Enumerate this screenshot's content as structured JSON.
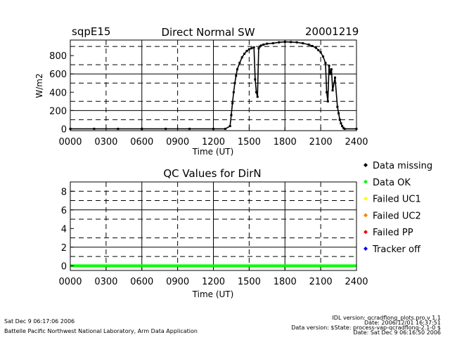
{
  "header": {
    "station": "sqpE15",
    "date": "20001219"
  },
  "footer": {
    "run_time": "Sat Dec  9 06:17:06 2006",
    "affiliation": "Battelle Pacific Northwest National Laboratory, Arm Data Application",
    "idl_version": "IDL version: qcradflong_plots.pro,v 1.1",
    "idl_date": "Date: 2006/12/01 16:37:51",
    "data_version": "Data version: $State: process-vap-qcradflong-2.1-0 $",
    "data_date": "Date: Sat Dec  9 06:16:50 2006"
  },
  "legend": [
    {
      "label": "Data missing",
      "color": "#000000"
    },
    {
      "label": "Data OK",
      "color": "#00ff00"
    },
    {
      "label": "Failed UC1",
      "color": "#ffff00"
    },
    {
      "label": "Failed UC2",
      "color": "#ff8000"
    },
    {
      "label": "Failed PP",
      "color": "#ff0000"
    },
    {
      "label": "Tracker off",
      "color": "#0000ff"
    }
  ],
  "chart_data": [
    {
      "type": "scatter",
      "title": "Direct Normal SW",
      "xlabel": "Time (UT)",
      "ylabel": "W/m2",
      "xlim": [
        0,
        24
      ],
      "ylim": [
        -20,
        970
      ],
      "x_ticks": [
        0,
        3,
        6,
        9,
        12,
        15,
        18,
        21,
        24
      ],
      "x_tick_labels": [
        "0000",
        "0300",
        "0600",
        "0900",
        "1200",
        "1500",
        "1800",
        "2100",
        "2400"
      ],
      "y_ticks": [
        0,
        200,
        400,
        600,
        800
      ],
      "y_tick_labels": [
        "0",
        "200",
        "400",
        "600",
        "800"
      ],
      "grid": "dashed at 0300/0900/1500/2100 and 100/300/500/700/900, solid at 0600/1200/1800 and 200/600",
      "series": [
        {
          "color": "#000000",
          "x": [
            0,
            2,
            4,
            6,
            8,
            10,
            12,
            13,
            13.4,
            13.5,
            13.6,
            13.7,
            13.8,
            13.9,
            14.0,
            14.2,
            14.4,
            14.6,
            14.8,
            15.0,
            15.2,
            15.4,
            15.5,
            15.6,
            15.7,
            15.8,
            15.9,
            16.0,
            16.2,
            16.5,
            17.0,
            17.5,
            18.0,
            18.5,
            19.0,
            19.5,
            20.0,
            20.3,
            20.6,
            20.8,
            21.0,
            21.2,
            21.4,
            21.5,
            21.6,
            21.7,
            21.8,
            21.9,
            22.0,
            22.2,
            22.4,
            22.5,
            22.6,
            22.7,
            22.8,
            22.9,
            23.0,
            24
          ],
          "y": [
            0,
            0,
            0,
            0,
            0,
            0,
            0,
            0,
            30,
            150,
            280,
            400,
            500,
            580,
            650,
            720,
            780,
            820,
            850,
            870,
            880,
            890,
            540,
            400,
            350,
            880,
            900,
            910,
            920,
            930,
            935,
            945,
            950,
            948,
            945,
            935,
            920,
            905,
            885,
            860,
            835,
            790,
            720,
            400,
            300,
            690,
            600,
            650,
            420,
            560,
            240,
            170,
            100,
            60,
            30,
            10,
            0,
            0
          ]
        }
      ]
    },
    {
      "type": "scatter",
      "title": "QC Values for DirN",
      "xlabel": "Time (UT)",
      "ylabel": "",
      "xlim": [
        0,
        24
      ],
      "ylim": [
        -0.5,
        9.0
      ],
      "x_ticks": [
        0,
        3,
        6,
        9,
        12,
        15,
        18,
        21,
        24
      ],
      "x_tick_labels": [
        "0000",
        "0300",
        "0600",
        "0900",
        "1200",
        "1500",
        "1800",
        "2100",
        "2400"
      ],
      "y_ticks": [
        0,
        2,
        4,
        6,
        8
      ],
      "y_tick_labels": [
        "0",
        "2",
        "4",
        "6",
        "8"
      ],
      "grid": "dashed at 0300/0900/1500/2100 and 1/3/5/7/8, solid at 0600/1200/1800 and 2/6",
      "series": [
        {
          "color": "#00ff00",
          "x": [
            0,
            24
          ],
          "y": [
            0,
            0
          ]
        }
      ]
    }
  ]
}
